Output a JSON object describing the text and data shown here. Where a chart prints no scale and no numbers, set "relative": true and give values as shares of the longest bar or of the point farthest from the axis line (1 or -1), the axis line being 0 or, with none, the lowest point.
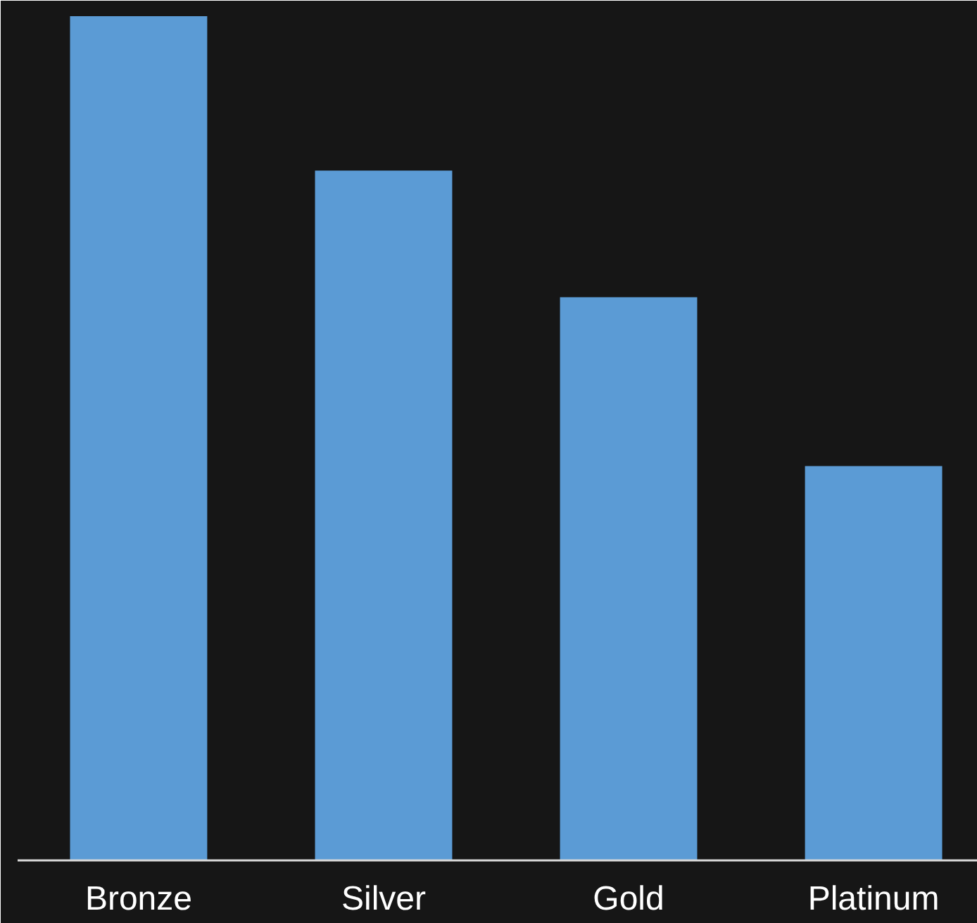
{
  "chart_data": {
    "type": "bar",
    "relative": true,
    "categories": [
      "Bronze",
      "Silver",
      "Gold",
      "Platinum"
    ],
    "values": [
      1,
      0.817,
      0.667,
      0.467
    ],
    "color": "#5b9bd5",
    "grid": false
  }
}
